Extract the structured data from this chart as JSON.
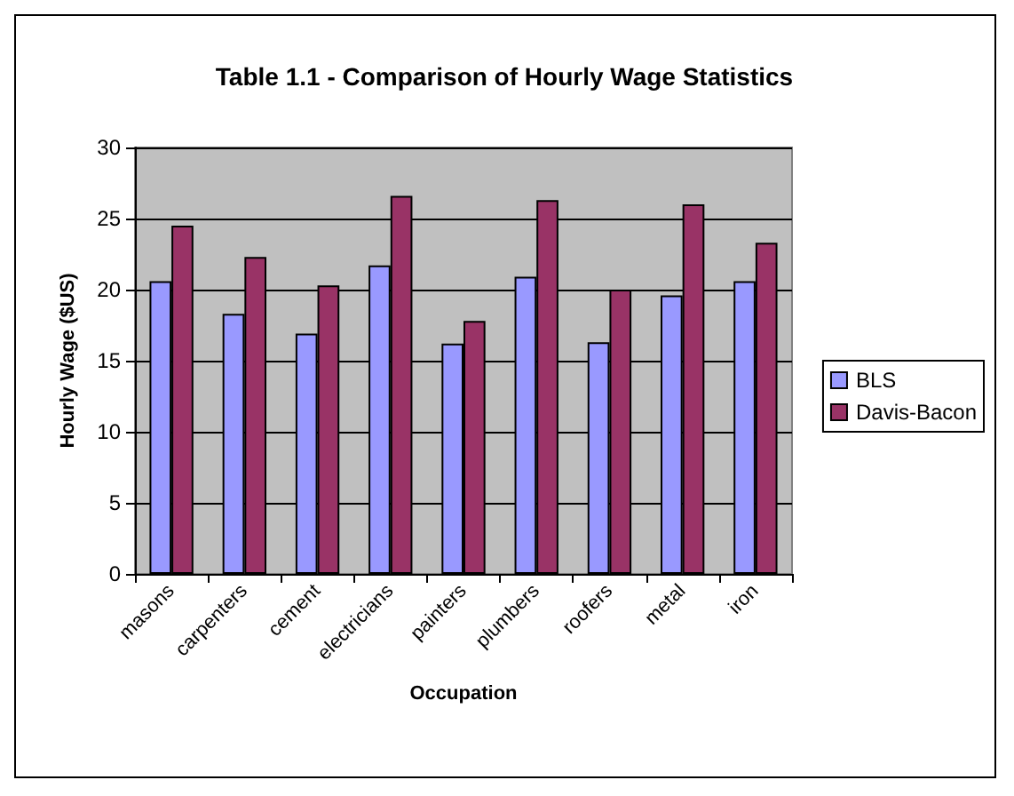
{
  "chart_data": {
    "type": "bar",
    "title": "Table 1.1 - Comparison of Hourly Wage Statistics",
    "xlabel": "Occupation",
    "ylabel": "Hourly Wage ($US)",
    "categories": [
      "masons",
      "carpenters",
      "cement",
      "electricians",
      "painters",
      "plumbers",
      "roofers",
      "metal",
      "iron"
    ],
    "series": [
      {
        "name": "BLS",
        "color": "#9999ff",
        "values": [
          20.6,
          18.3,
          16.9,
          21.7,
          16.2,
          20.9,
          16.3,
          19.6,
          20.6
        ]
      },
      {
        "name": "Davis-Bacon",
        "color": "#993366",
        "values": [
          24.5,
          22.3,
          20.3,
          26.6,
          17.8,
          26.3,
          20.0,
          26.0,
          23.3
        ]
      }
    ],
    "ylim": [
      0,
      30
    ],
    "yticks": [
      0,
      5,
      10,
      15,
      20,
      25,
      30
    ],
    "grid": "y",
    "legend": "right"
  }
}
